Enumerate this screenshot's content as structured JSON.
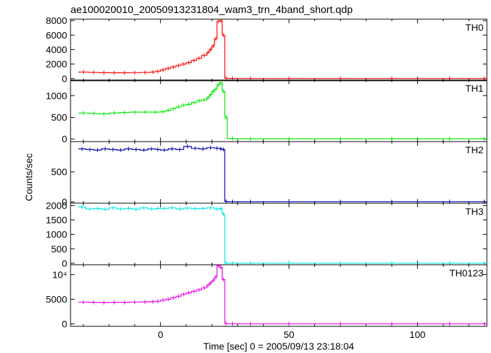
{
  "chart_data": {
    "type": "line",
    "title": "ae100020010_20050913231804_wam3_trn_4band_short.qdp",
    "xlabel": "Time [sec] 0 = 2005/09/13 23:18:04",
    "ylabel": "Counts/sec",
    "xlim": [
      -35,
      127
    ],
    "x_ticks": [
      "0",
      "50",
      "100"
    ],
    "x_tick_values": [
      0,
      50,
      100
    ],
    "panels": [
      {
        "name": "TH0",
        "color": "#ff0000",
        "ylim": [
          -300,
          8200
        ],
        "y_tick_labels": [
          "0",
          "2000",
          "4000",
          "6000",
          "8000"
        ],
        "y_tick_values": [
          0,
          2000,
          4000,
          6000,
          8000
        ],
        "x": [
          -32,
          -28,
          -24,
          -20,
          -16,
          -12,
          -8,
          -4,
          -2,
          0,
          2,
          4,
          6,
          8,
          10,
          12,
          14,
          16,
          18,
          19,
          20,
          21,
          22,
          23,
          24,
          25,
          26,
          30,
          40,
          60,
          80,
          100,
          125
        ],
        "y": [
          900,
          850,
          820,
          800,
          800,
          810,
          850,
          900,
          1000,
          1200,
          1400,
          1600,
          1800,
          2000,
          2200,
          2500,
          2800,
          3200,
          3600,
          4000,
          4500,
          5500,
          7900,
          8000,
          6000,
          60,
          20,
          10,
          10,
          10,
          10,
          10,
          10
        ]
      },
      {
        "name": "TH1",
        "color": "#00e600",
        "ylim": [
          -60,
          1360
        ],
        "y_tick_labels": [
          "0",
          "500",
          "1000"
        ],
        "y_tick_values": [
          0,
          500,
          1000
        ],
        "x": [
          -32,
          -28,
          -24,
          -20,
          -16,
          -12,
          -8,
          -4,
          0,
          2,
          4,
          6,
          8,
          10,
          12,
          14,
          16,
          18,
          19,
          20,
          21,
          22,
          23,
          24,
          25,
          26,
          30,
          40,
          60,
          80,
          100,
          125
        ],
        "y": [
          600,
          590,
          580,
          600,
          610,
          620,
          620,
          620,
          630,
          660,
          700,
          740,
          780,
          800,
          840,
          880,
          900,
          950,
          1020,
          1100,
          1150,
          1250,
          1300,
          1100,
          500,
          10,
          5,
          5,
          5,
          5,
          5,
          5
        ]
      },
      {
        "name": "TH2",
        "color": "#0000aa",
        "ylim": [
          -20,
          1000
        ],
        "y_tick_labels": [
          "0",
          "500"
        ],
        "y_tick_values": [
          0,
          500
        ],
        "x": [
          -32,
          -29,
          -26,
          -23,
          -20,
          -17,
          -14,
          -11,
          -8,
          -5,
          -2,
          0,
          3,
          6,
          9,
          12,
          15,
          18,
          21,
          23,
          24,
          25,
          26,
          30,
          40,
          60,
          80,
          100,
          125
        ],
        "y": [
          880,
          870,
          860,
          880,
          870,
          860,
          880,
          870,
          860,
          880,
          870,
          860,
          880,
          870,
          920,
          890,
          880,
          900,
          890,
          880,
          870,
          10,
          5,
          5,
          5,
          5,
          5,
          5,
          5
        ]
      },
      {
        "name": "TH3",
        "color": "#00e6e6",
        "ylim": [
          -50,
          2080
        ],
        "y_tick_labels": [
          "0",
          "500",
          "1000",
          "1500",
          "2000"
        ],
        "y_tick_values": [
          0,
          500,
          1000,
          1500,
          2000
        ],
        "x": [
          -32,
          -29,
          -26,
          -23,
          -20,
          -17,
          -14,
          -11,
          -8,
          -5,
          -2,
          0,
          3,
          6,
          9,
          12,
          15,
          18,
          21,
          23,
          24,
          25,
          26,
          30,
          40,
          60,
          80,
          100,
          125
        ],
        "y": [
          1950,
          1880,
          1900,
          1870,
          1920,
          1880,
          1900,
          1870,
          1920,
          1880,
          1900,
          1900,
          1920,
          1880,
          1910,
          1890,
          1900,
          1920,
          1880,
          1900,
          1700,
          10,
          5,
          5,
          5,
          5,
          5,
          5,
          5
        ]
      },
      {
        "name": "TH0123",
        "color": "#e600e6",
        "ylim": [
          -500,
          12000
        ],
        "y_tick_labels": [
          "0",
          "5000",
          "10⁴"
        ],
        "y_tick_values": [
          0,
          5000,
          10000
        ],
        "x": [
          -32,
          -28,
          -24,
          -20,
          -16,
          -12,
          -8,
          -4,
          -2,
          0,
          2,
          4,
          6,
          8,
          10,
          12,
          14,
          16,
          18,
          19,
          20,
          21,
          22,
          23,
          24,
          25,
          26,
          30,
          40,
          60,
          80,
          100,
          125
        ],
        "y": [
          4400,
          4350,
          4300,
          4350,
          4350,
          4400,
          4450,
          4500,
          4600,
          4800,
          5000,
          5300,
          5600,
          6000,
          6300,
          6600,
          6900,
          7300,
          7800,
          8300,
          8800,
          9500,
          11800,
          11500,
          9000,
          80,
          30,
          20,
          20,
          20,
          20,
          20,
          20
        ]
      }
    ]
  }
}
